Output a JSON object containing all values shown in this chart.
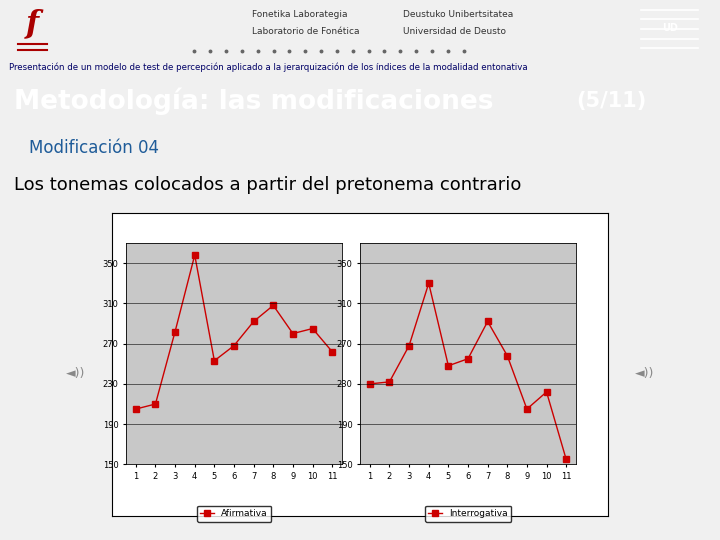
{
  "subtitle_bar": "Presentación de un modelo de test de percepción aplicado a la jerarquización de los índices de la modalidad entonativa",
  "slide_title": "Metodología: las modificaciones",
  "slide_title_num": "(5/11)",
  "mod_label": "Modificación 04",
  "body_text": "Los tonemas colocados a partir del pretonema contrario",
  "chart1_title": "Afirmativa",
  "chart2_title": "Interrogativa",
  "x_values": [
    1,
    2,
    3,
    4,
    5,
    6,
    7,
    8,
    9,
    10,
    11
  ],
  "afirmativa_y": [
    205,
    210,
    282,
    358,
    253,
    268,
    292,
    308,
    280,
    285,
    262
  ],
  "interrogativa_y": [
    230,
    232,
    268,
    330,
    248,
    255,
    292,
    258,
    205,
    222,
    155
  ],
  "y_ticks": [
    150,
    190,
    230,
    270,
    310,
    350
  ],
  "line_color": "#CC0000",
  "marker_color": "#CC0000",
  "plot_bg": "#C8C8C8",
  "bg_color": "#F0F0F0",
  "header_bg": "#FFFFFF",
  "subtitle_bg": "#A8C4D8",
  "slide_title_bg": "#1F3864",
  "slide_title_color": "#FFFFFF",
  "mod_color": "#1F5C99",
  "body_color": "#000000",
  "content_bg": "#FFFFFF",
  "header_text_color": "#333333",
  "logo_bg": "#1F3864"
}
